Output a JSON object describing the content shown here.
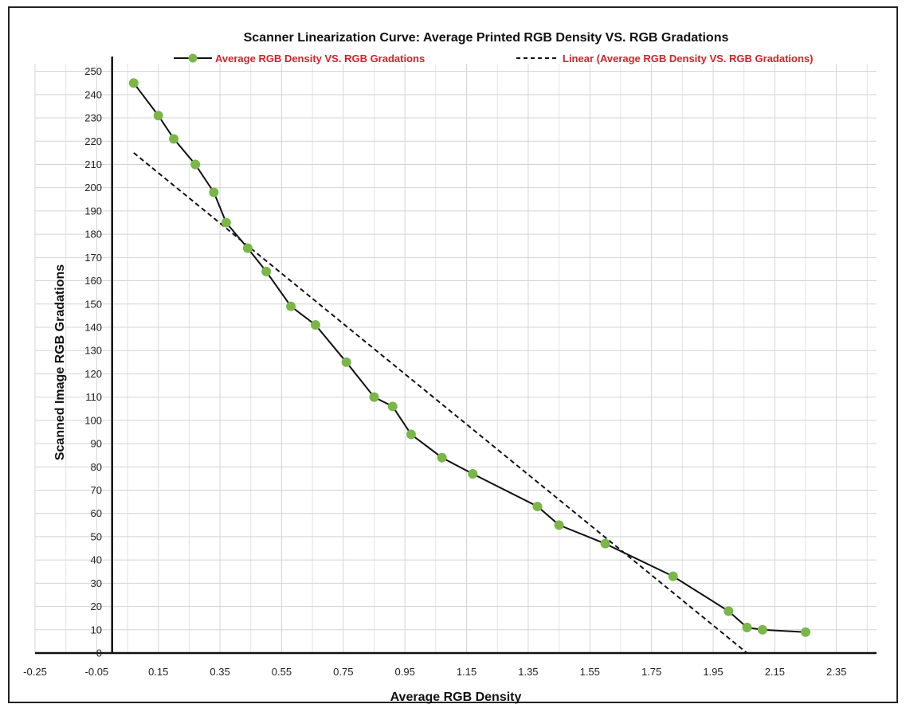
{
  "chart_data": {
    "type": "scatter",
    "title": "Scanner Linearization Curve: Average Printed RGB Density  VS.  RGB Gradations",
    "xlabel": "Average RGB Density",
    "ylabel": "Scanned Image RGB  Gradations",
    "xlim": [
      -0.25,
      2.48
    ],
    "ylim": [
      0,
      255
    ],
    "x_ticks": [
      "-0.25",
      "-0.05",
      "0.15",
      "0.35",
      "0.55",
      "0.75",
      "0.95",
      "1.15",
      "1.35",
      "1.55",
      "1.75",
      "1.95",
      "2.15",
      "2.35"
    ],
    "y_ticks": [
      "0",
      "10",
      "20",
      "30",
      "40",
      "50",
      "60",
      "70",
      "80",
      "90",
      "100",
      "110",
      "120",
      "130",
      "140",
      "150",
      "160",
      "170",
      "180",
      "190",
      "200",
      "210",
      "220",
      "230",
      "240",
      "250"
    ],
    "grid": true,
    "legend_position": "top",
    "series": [
      {
        "name": "Average RGB Density VS. RGB Gradations",
        "style": "line-markers",
        "color": "#111111",
        "marker_color": "#7ab648",
        "x": [
          0.07,
          0.15,
          0.2,
          0.27,
          0.33,
          0.37,
          0.44,
          0.5,
          0.58,
          0.66,
          0.76,
          0.85,
          0.91,
          0.97,
          1.07,
          1.17,
          1.38,
          1.45,
          1.6,
          1.82,
          2.0,
          2.06,
          2.11,
          2.25
        ],
        "y": [
          245,
          231,
          221,
          210,
          198,
          185,
          174,
          164,
          149,
          141,
          125,
          110,
          106,
          94,
          84,
          77,
          63,
          55,
          47,
          33,
          18,
          11,
          10,
          9
        ]
      },
      {
        "name": "Linear (Average RGB Density VS. RGB Gradations)",
        "style": "dashed-line",
        "color": "#111111",
        "x": [
          0.07,
          2.06
        ],
        "y": [
          215,
          0
        ]
      }
    ]
  }
}
